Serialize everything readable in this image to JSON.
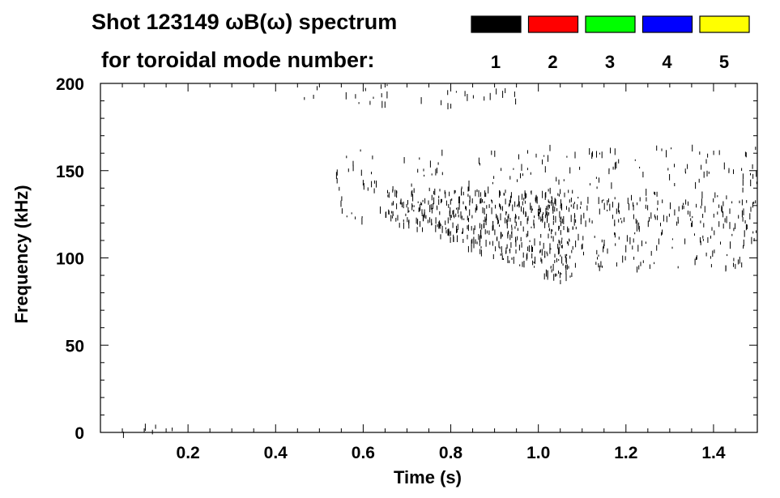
{
  "chart_data": {
    "type": "heatmap",
    "title_line1": "Shot 123149 ωB(ω) spectrum",
    "title_line2": "for toroidal mode number:",
    "xlabel": "Time (s)",
    "ylabel": "Frequency (kHz)",
    "xlim": [
      0.0,
      1.5
    ],
    "ylim": [
      0,
      200
    ],
    "xticks": [
      0.2,
      0.4,
      0.6,
      0.8,
      1.0,
      1.2,
      1.4
    ],
    "xtick_labels": [
      "0.2",
      "0.4",
      "0.6",
      "0.8",
      "1.0",
      "1.2",
      "1.4"
    ],
    "yticks": [
      0,
      50,
      100,
      150,
      200
    ],
    "ytick_labels": [
      "0",
      "50",
      "100",
      "150",
      "200"
    ],
    "legend": {
      "placement": "top-right",
      "entries": [
        {
          "label": "1",
          "color": "#000000"
        },
        {
          "label": "2",
          "color": "#ff0000"
        },
        {
          "label": "3",
          "color": "#00ff00"
        },
        {
          "label": "4",
          "color": "#0000ff"
        },
        {
          "label": "5",
          "color": "#ffff00"
        }
      ]
    },
    "features": [
      {
        "mode": "1",
        "t_start": 0.45,
        "t_end": 0.95,
        "f_low": 188,
        "f_high": 200,
        "density": "sparse"
      },
      {
        "mode": "1",
        "t_start": 0.52,
        "t_end": 1.5,
        "f_low": 118,
        "f_high": 165,
        "density": "sparse"
      },
      {
        "mode": "1",
        "t_start": 0.65,
        "t_end": 1.08,
        "f_low": 87,
        "f_high": 140,
        "density": "dense"
      },
      {
        "mode": "1",
        "t_start": 1.08,
        "t_end": 1.5,
        "f_low": 95,
        "f_high": 135,
        "density": "medium"
      },
      {
        "mode": "1",
        "t_start": 0.03,
        "t_end": 0.18,
        "f_low": 0,
        "f_high": 6,
        "density": "sparse"
      }
    ]
  }
}
